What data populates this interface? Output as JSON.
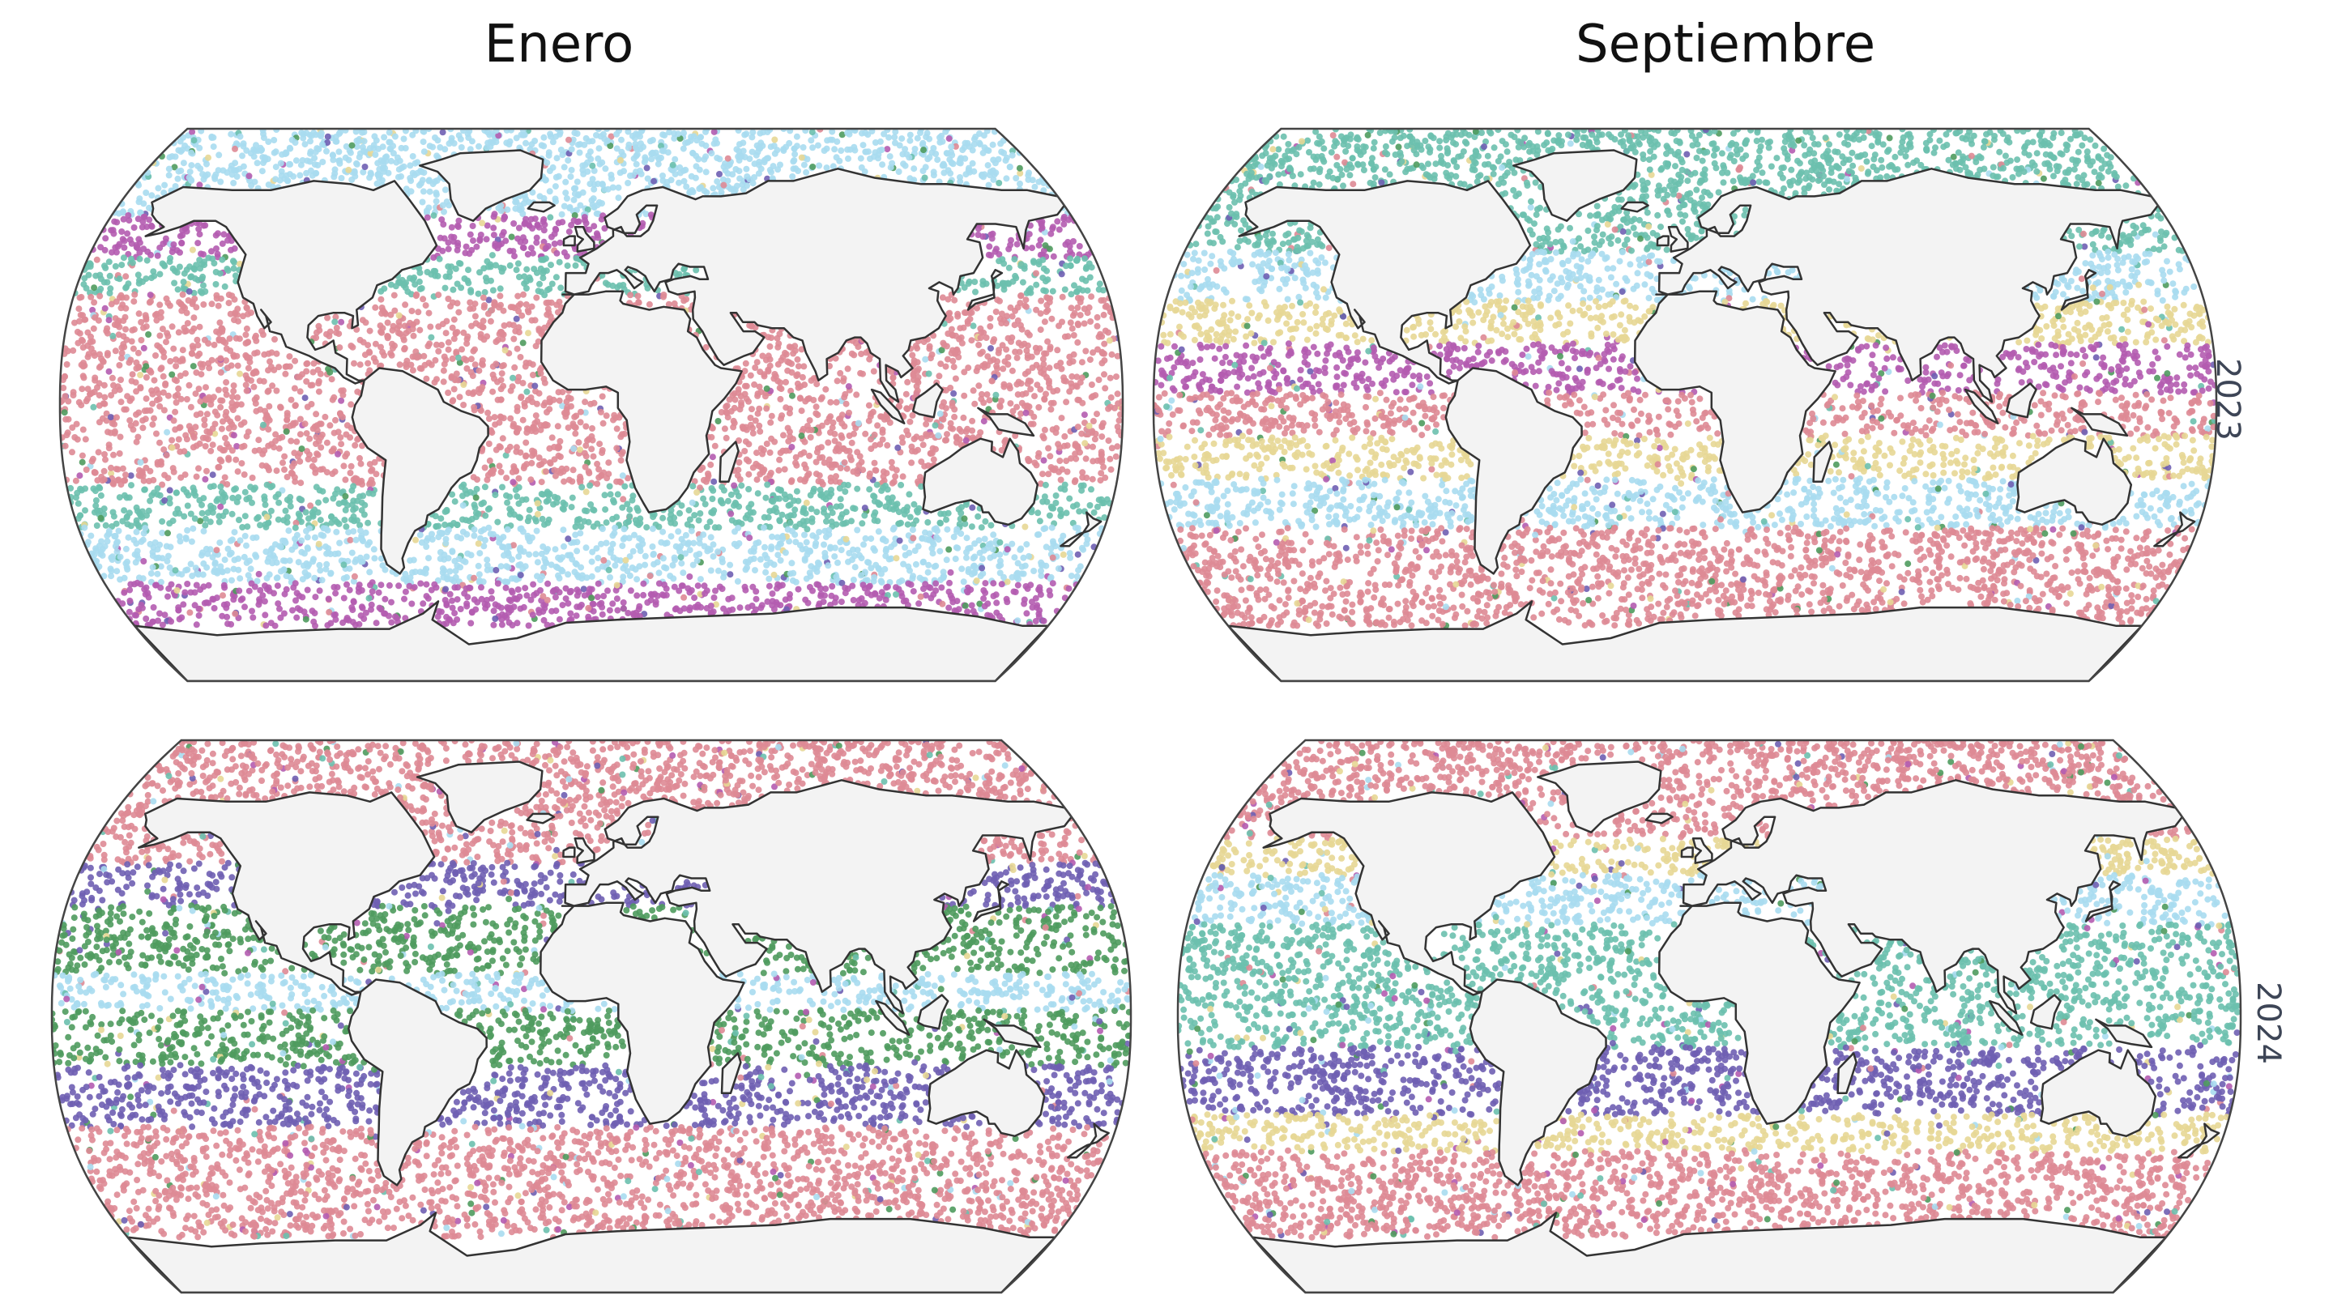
{
  "columns": [
    "Enero",
    "Septiembre"
  ],
  "rows": [
    "2023",
    "2024"
  ],
  "colors": {
    "pink": "#de8a95",
    "teal": "#6cc0ae",
    "lightblue": "#a9dcf0",
    "purple": "#b45cb0",
    "indigo": "#6f5fb3",
    "green": "#4f9b5e",
    "yellow": "#e7d795",
    "land": "#f3f3f3",
    "coast": "#333333",
    "frame": "#444444"
  },
  "panels": [
    {
      "column": "Enero",
      "row": "2023",
      "bands": [
        {
          "lat": [
            90,
            62
          ],
          "color": "lightblue"
        },
        {
          "lat": [
            62,
            48
          ],
          "color": "purple"
        },
        {
          "lat": [
            48,
            36
          ],
          "color": "teal"
        },
        {
          "lat": [
            36,
            -26
          ],
          "color": "pink"
        },
        {
          "lat": [
            -26,
            -40
          ],
          "color": "teal"
        },
        {
          "lat": [
            -40,
            -58
          ],
          "color": "lightblue"
        },
        {
          "lat": [
            -58,
            -72
          ],
          "color": "purple"
        }
      ]
    },
    {
      "column": "Septiembre",
      "row": "2023",
      "bands": [
        {
          "lat": [
            90,
            50
          ],
          "color": "teal"
        },
        {
          "lat": [
            50,
            34
          ],
          "color": "lightblue"
        },
        {
          "lat": [
            34,
            20
          ],
          "color": "yellow"
        },
        {
          "lat": [
            20,
            4
          ],
          "color": "purple"
        },
        {
          "lat": [
            4,
            -10
          ],
          "color": "pink"
        },
        {
          "lat": [
            -10,
            -24
          ],
          "color": "yellow"
        },
        {
          "lat": [
            -24,
            -40
          ],
          "color": "lightblue"
        },
        {
          "lat": [
            -40,
            -72
          ],
          "color": "pink"
        }
      ]
    },
    {
      "column": "Enero",
      "row": "2024",
      "bands": [
        {
          "lat": [
            90,
            50
          ],
          "color": "pink"
        },
        {
          "lat": [
            50,
            36
          ],
          "color": "indigo"
        },
        {
          "lat": [
            36,
            14
          ],
          "color": "green"
        },
        {
          "lat": [
            14,
            2
          ],
          "color": "lightblue"
        },
        {
          "lat": [
            2,
            -16
          ],
          "color": "green"
        },
        {
          "lat": [
            -16,
            -36
          ],
          "color": "indigo"
        },
        {
          "lat": [
            -36,
            -72
          ],
          "color": "pink"
        }
      ]
    },
    {
      "column": "Septiembre",
      "row": "2024",
      "bands": [
        {
          "lat": [
            90,
            58
          ],
          "color": "pink"
        },
        {
          "lat": [
            58,
            46
          ],
          "color": "yellow"
        },
        {
          "lat": [
            46,
            30
          ],
          "color": "lightblue"
        },
        {
          "lat": [
            30,
            -10
          ],
          "color": "teal"
        },
        {
          "lat": [
            -10,
            -32
          ],
          "color": "indigo"
        },
        {
          "lat": [
            -32,
            -44
          ],
          "color": "yellow"
        },
        {
          "lat": [
            -44,
            -72
          ],
          "color": "pink"
        }
      ]
    }
  ]
}
